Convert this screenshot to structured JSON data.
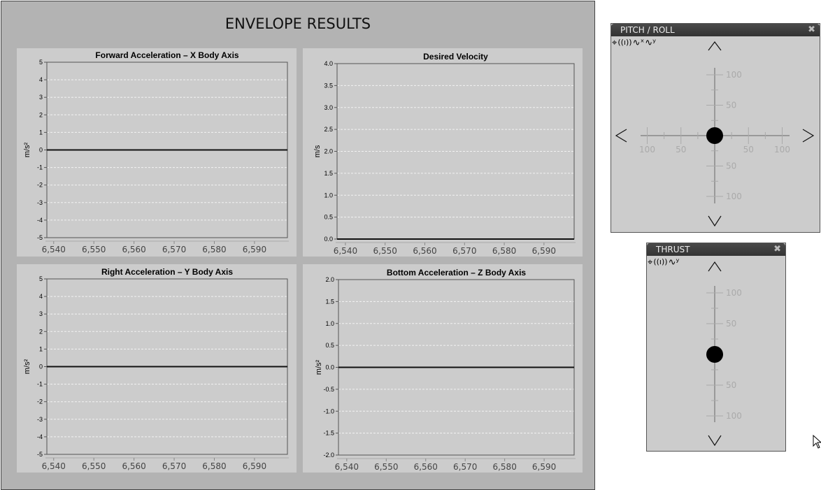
{
  "main": {
    "title": "ENVELOPE RESULTS"
  },
  "chart_data": [
    {
      "type": "line",
      "title": "Forward Acceleration – X Body Axis",
      "ylabel": "m/s²",
      "xlabel": "",
      "xlim": [
        6538.3,
        6598.2
      ],
      "ylim": [
        -5,
        5
      ],
      "yticks": [
        "5",
        "4",
        "3",
        "2",
        "1",
        "0",
        "-1",
        "-2",
        "-3",
        "-4",
        "-5"
      ],
      "xticks": [
        "6,540",
        "6,550",
        "6,560",
        "6,570",
        "6,580",
        "6,590"
      ],
      "grid": true,
      "series": [
        {
          "x": [
            6538.3,
            6598.2
          ],
          "y": [
            0,
            0
          ]
        }
      ]
    },
    {
      "type": "line",
      "title": "Desired Velocity",
      "ylabel": "m/s",
      "xlabel": "",
      "xlim": [
        6537.9,
        6597.6
      ],
      "ylim": [
        0,
        4
      ],
      "yticks": [
        "4.0",
        "3.5",
        "3.0",
        "2.5",
        "2.0",
        "1.5",
        "1.0",
        "0.5",
        "0.0"
      ],
      "xticks": [
        "6,540",
        "6,550",
        "6,560",
        "6,570",
        "6,580",
        "6,590"
      ],
      "grid": true,
      "series": [
        {
          "x": [
            6537.9,
            6597.6
          ],
          "y": [
            0,
            0
          ]
        }
      ]
    },
    {
      "type": "line",
      "title": "Right Acceleration – Y Body Axis",
      "ylabel": "m/s²",
      "xlabel": "",
      "xlim": [
        6538.3,
        6598.2
      ],
      "ylim": [
        -5,
        5
      ],
      "yticks": [
        "5",
        "4",
        "3",
        "2",
        "1",
        "0",
        "-1",
        "-2",
        "-3",
        "-4",
        "-5"
      ],
      "xticks": [
        "6,540",
        "6,550",
        "6,560",
        "6,570",
        "6,580",
        "6,590"
      ],
      "grid": true,
      "series": [
        {
          "x": [
            6538.3,
            6598.2
          ],
          "y": [
            0,
            0
          ]
        }
      ]
    },
    {
      "type": "line",
      "title": "Bottom Acceleration – Z Body Axis",
      "ylabel": "m/s²",
      "xlabel": "",
      "xlim": [
        6537.9,
        6597.6
      ],
      "ylim": [
        -2,
        2
      ],
      "yticks": [
        "2.0",
        "1.5",
        "1.0",
        "0.5",
        "0.0",
        "-0.5",
        "-1.0",
        "-1.5",
        "-2.0"
      ],
      "xticks": [
        "6,540",
        "6,550",
        "6,560",
        "6,570",
        "6,580",
        "6,590"
      ],
      "grid": true,
      "series": [
        {
          "x": [
            6537.9,
            6597.6
          ],
          "y": [
            0,
            0
          ]
        }
      ]
    }
  ],
  "pitch_roll": {
    "title": "PITCH / ROLL",
    "close": "✖",
    "icons": [
      "crosshair-icon",
      "antenna-icon",
      "wave-x-icon",
      "wave-y-icon"
    ],
    "v_labels": [
      "100",
      "50",
      "50",
      "100"
    ],
    "h_labels": [
      "100",
      "50",
      "50",
      "100"
    ],
    "stick_x": 0,
    "stick_y": 0
  },
  "thrust": {
    "title": "THRUST",
    "close": "✖",
    "icons": [
      "crosshair-icon",
      "antenna-icon",
      "wave-y-icon"
    ],
    "v_labels": [
      "100",
      "50",
      "50",
      "100"
    ],
    "stick_y": 0
  }
}
